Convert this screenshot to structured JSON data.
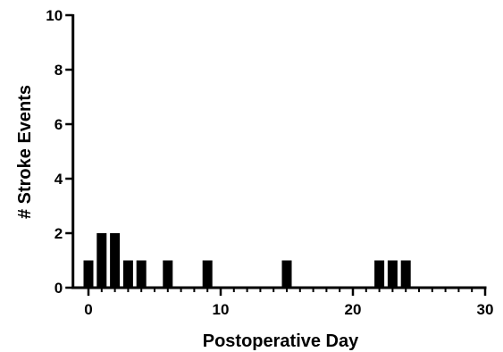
{
  "chart_data": {
    "type": "bar",
    "title": "",
    "xlabel": "Postoperative Day",
    "ylabel": "# Stroke Events",
    "x": [
      0,
      1,
      2,
      3,
      4,
      6,
      9,
      15,
      22,
      23,
      24
    ],
    "values": [
      1,
      2,
      2,
      1,
      1,
      1,
      1,
      1,
      1,
      1,
      1
    ],
    "xlim": [
      -1,
      30
    ],
    "ylim": [
      0,
      10
    ],
    "xticks": [
      0,
      10,
      20,
      30
    ],
    "xtick_labels": [
      "0",
      "10",
      "20",
      "30"
    ],
    "yticks": [
      0,
      2,
      4,
      6,
      8,
      10
    ],
    "ytick_labels": [
      "0",
      "2",
      "4",
      "6",
      "8",
      "10"
    ],
    "grid": false,
    "legend": "none",
    "bar_color": "#000000"
  }
}
